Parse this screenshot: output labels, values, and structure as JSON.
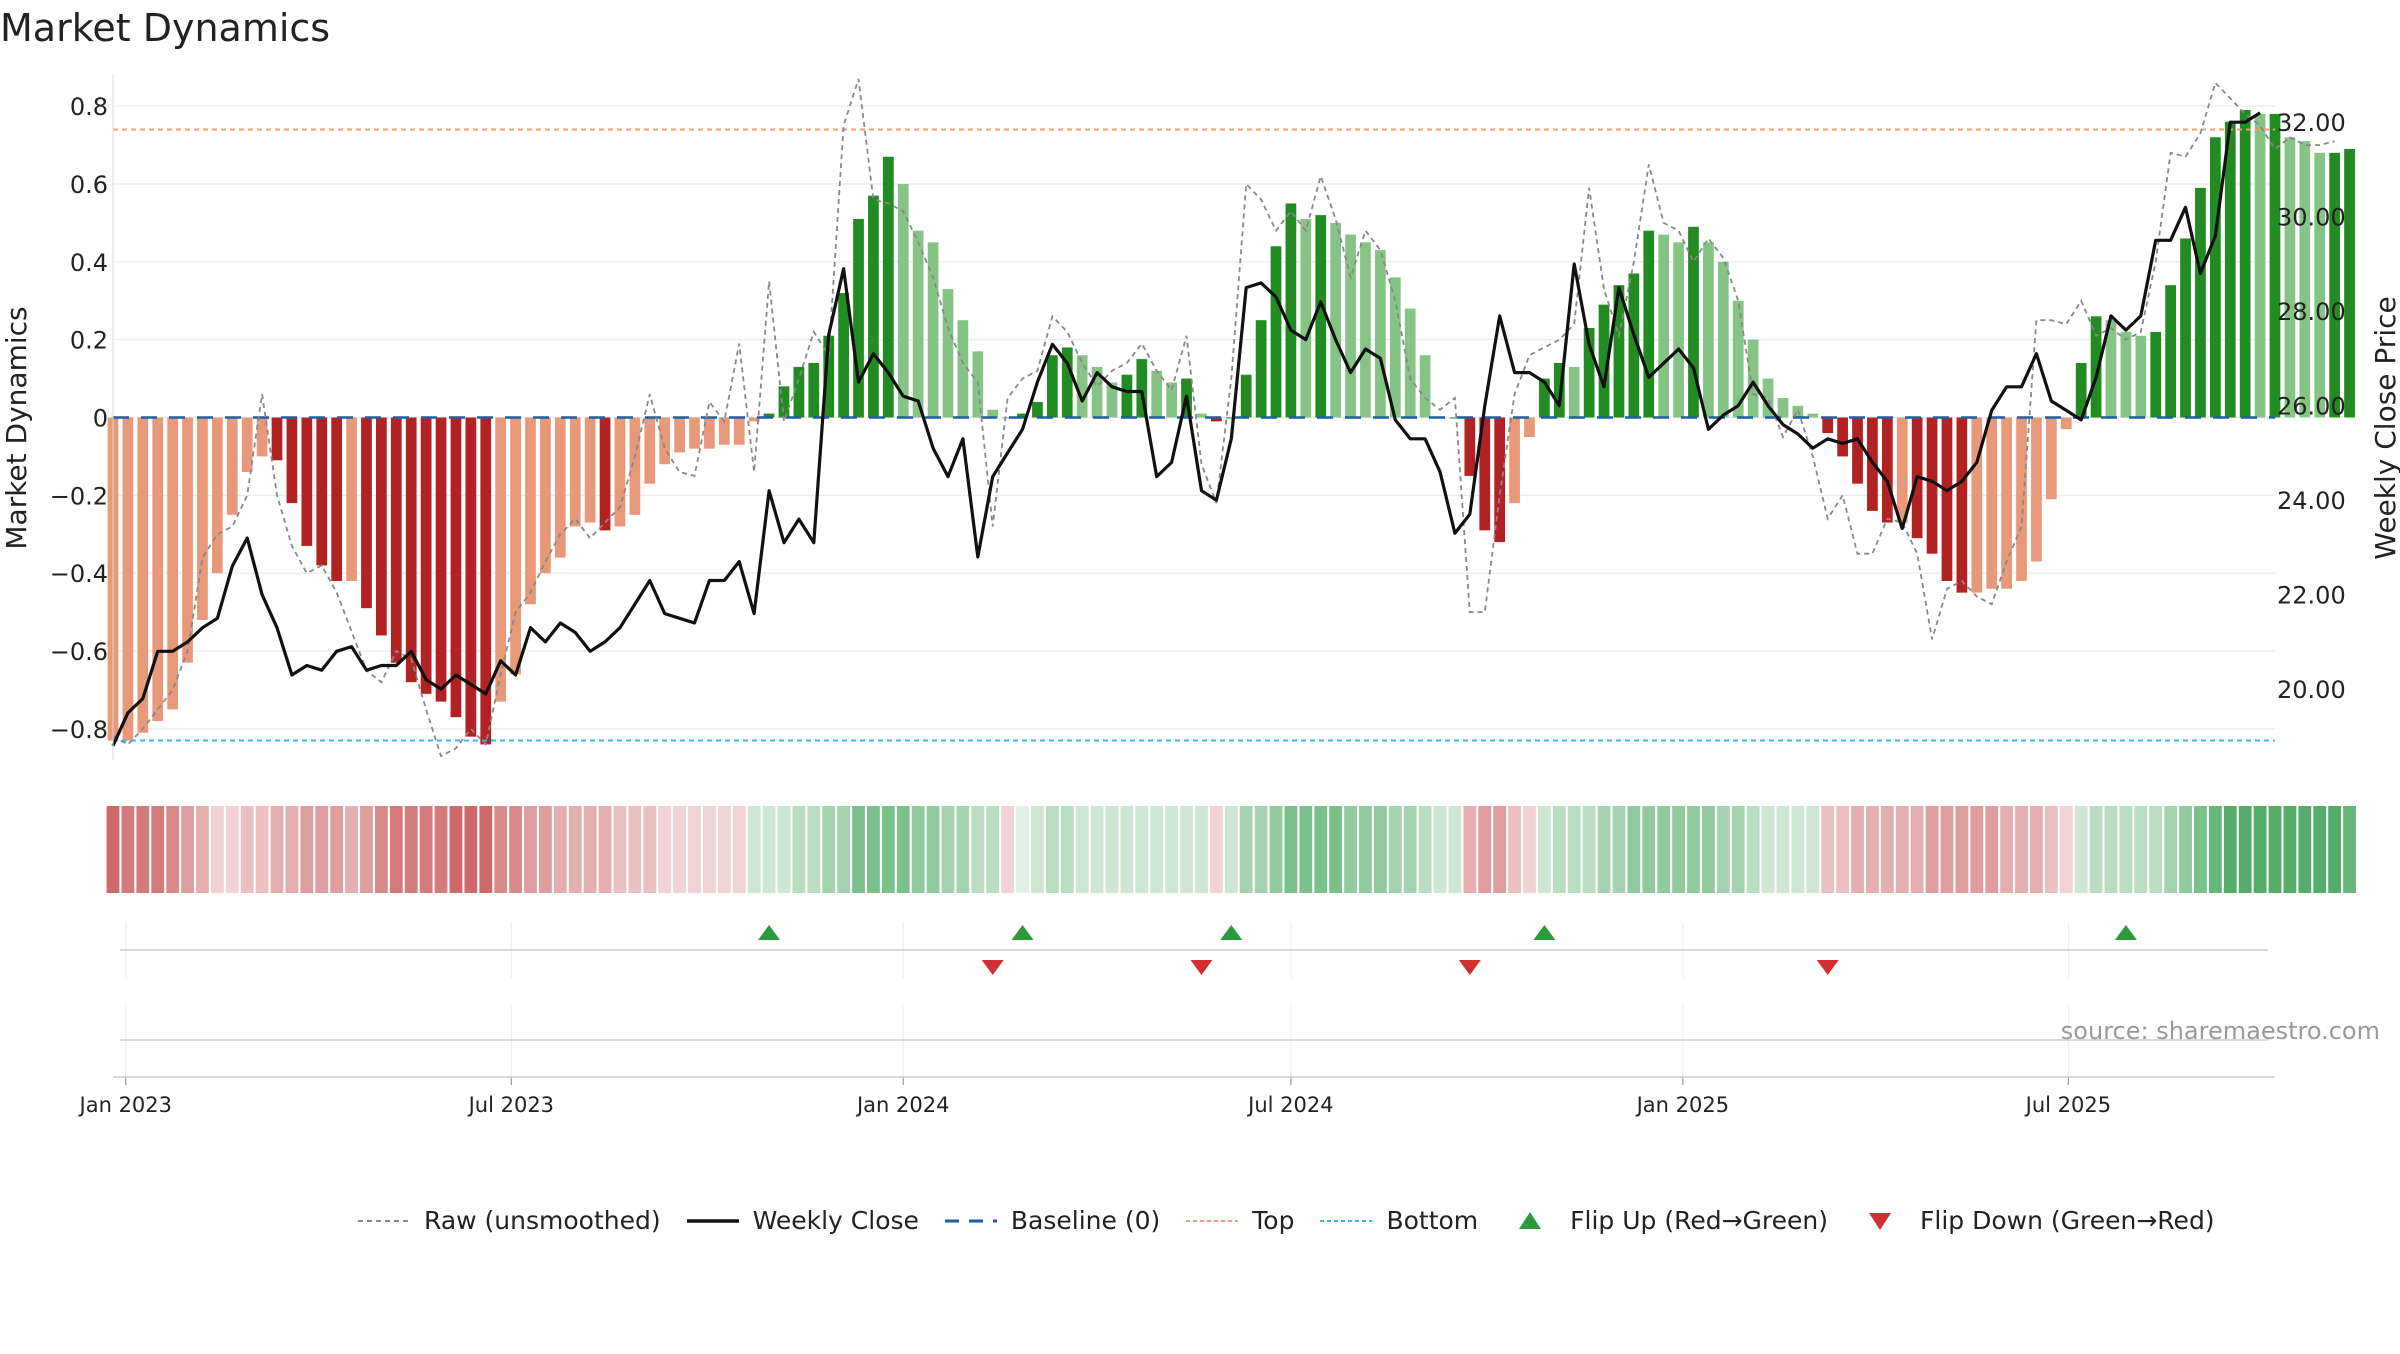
{
  "title": "Market Dynamics",
  "source_note": "source: sharemaestro.com",
  "colors": {
    "strong_red": "#b22222",
    "light_red": "#e8997a",
    "strong_green": "#228b22",
    "light_green": "#86c486",
    "raw_line": "#888888",
    "close_line": "#111111",
    "baseline": "#1f5fa0",
    "top_line": "#f0a070",
    "bottom_line": "#33bbee",
    "flip_up": "#2a9a3a",
    "flip_down": "#d03030"
  },
  "legend": [
    {
      "label": "Raw (unsmoothed)",
      "icon": "dotted-gray-line"
    },
    {
      "label": "Weekly Close",
      "icon": "solid-black-line"
    },
    {
      "label": "Baseline (0)",
      "icon": "dashed-blue-line"
    },
    {
      "label": "Top",
      "icon": "dotted-orange-line"
    },
    {
      "label": "Bottom",
      "icon": "dotted-cyan-line"
    },
    {
      "label": "Flip Up (Red→Green)",
      "icon": "green-triangle-up"
    },
    {
      "label": "Flip Down (Green→Red)",
      "icon": "red-triangle-down"
    }
  ],
  "chart_data": {
    "type": "bar",
    "title": "Market Dynamics",
    "ylabel": "Market Dynamics",
    "y2label": "Weekly Close Price",
    "ylim": [
      -0.88,
      0.88
    ],
    "y2lim": [
      18.5,
      33.0
    ],
    "yticks": [
      "0.8",
      "0.6",
      "0.4",
      "0.2",
      "0",
      "−0.2",
      "−0.4",
      "−0.6",
      "−0.8"
    ],
    "ytick_values": [
      0.8,
      0.6,
      0.4,
      0.2,
      0,
      -0.2,
      -0.4,
      -0.6,
      -0.8
    ],
    "y2ticks": [
      "32.00",
      "30.00",
      "28.00",
      "26.00",
      "24.00",
      "22.00",
      "20.00"
    ],
    "y2tick_values": [
      32,
      30,
      28,
      26,
      24,
      22,
      20
    ],
    "x_start": "2022-12-26",
    "xlim": [
      "2022-12-26",
      "2025-10-06"
    ],
    "xticks": [
      "Jan 2023",
      "Jul 2023",
      "Jan 2024",
      "Jul 2024",
      "Jan 2025",
      "Jul 2025"
    ],
    "xtick_dates": [
      "2023-01-01",
      "2023-07-01",
      "2024-01-01",
      "2024-07-01",
      "2025-01-01",
      "2025-07-01"
    ],
    "top_line": 0.74,
    "bottom_line": -0.83,
    "grid": true,
    "legend_position": "bottom",
    "series": [
      {
        "name": "Market Dynamics",
        "values": [
          -0.83,
          -0.83,
          -0.81,
          -0.78,
          -0.75,
          -0.63,
          -0.52,
          -0.4,
          -0.25,
          -0.14,
          -0.1,
          -0.11,
          -0.22,
          -0.33,
          -0.38,
          -0.42,
          -0.42,
          -0.49,
          -0.56,
          -0.63,
          -0.68,
          -0.71,
          -0.73,
          -0.77,
          -0.82,
          -0.84,
          -0.73,
          -0.66,
          -0.48,
          -0.4,
          -0.36,
          -0.28,
          -0.27,
          -0.29,
          -0.28,
          -0.25,
          -0.17,
          -0.12,
          -0.09,
          -0.08,
          -0.08,
          -0.07,
          -0.07,
          -0.01,
          0.01,
          0.08,
          0.13,
          0.14,
          0.21,
          0.32,
          0.51,
          0.57,
          0.67,
          0.6,
          0.48,
          0.45,
          0.33,
          0.25,
          0.17,
          0.02,
          0.0,
          0.01,
          0.04,
          0.16,
          0.18,
          0.16,
          0.13,
          0.09,
          0.11,
          0.15,
          0.12,
          0.09,
          0.1,
          0.01,
          -0.01,
          0.0,
          0.11,
          0.25,
          0.44,
          0.55,
          0.51,
          0.52,
          0.5,
          0.47,
          0.45,
          0.43,
          0.36,
          0.28,
          0.16,
          0.0,
          0.0,
          -0.15,
          -0.29,
          -0.32,
          -0.22,
          -0.05,
          0.1,
          0.14,
          0.13,
          0.23,
          0.29,
          0.34,
          0.37,
          0.48,
          0.47,
          0.45,
          0.49,
          0.45,
          0.4,
          0.3,
          0.2,
          0.1,
          0.05,
          0.03,
          0.01,
          -0.04,
          -0.1,
          -0.17,
          -0.24,
          -0.27,
          -0.27,
          -0.31,
          -0.35,
          -0.42,
          -0.45,
          -0.45,
          -0.44,
          -0.44,
          -0.42,
          -0.37,
          -0.21,
          -0.03,
          0.14,
          0.26,
          0.25,
          0.22,
          0.21,
          0.22,
          0.34,
          0.46,
          0.59,
          0.72,
          0.76,
          0.79,
          0.78,
          0.78,
          0.72,
          0.71,
          0.68,
          0.68,
          0.69
        ]
      },
      {
        "name": "Raw (unsmoothed)",
        "values": [
          -0.82,
          -0.84,
          -0.8,
          -0.75,
          -0.7,
          -0.6,
          -0.36,
          -0.3,
          -0.28,
          -0.2,
          0.06,
          -0.2,
          -0.33,
          -0.4,
          -0.38,
          -0.45,
          -0.55,
          -0.65,
          -0.68,
          -0.6,
          -0.62,
          -0.75,
          -0.87,
          -0.85,
          -0.8,
          -0.84,
          -0.66,
          -0.5,
          -0.45,
          -0.37,
          -0.3,
          -0.26,
          -0.31,
          -0.27,
          -0.23,
          -0.1,
          0.06,
          -0.08,
          -0.14,
          -0.15,
          0.04,
          -0.01,
          0.19,
          -0.14,
          0.35,
          -0.01,
          0.1,
          0.22,
          0.16,
          0.75,
          0.87,
          0.56,
          0.55,
          0.53,
          0.45,
          0.36,
          0.23,
          0.14,
          0.09,
          -0.28,
          0.05,
          0.1,
          0.12,
          0.26,
          0.22,
          0.14,
          0.08,
          0.12,
          0.14,
          0.19,
          0.12,
          0.07,
          0.21,
          -0.12,
          -0.22,
          0.1,
          0.6,
          0.56,
          0.48,
          0.53,
          0.48,
          0.62,
          0.51,
          0.36,
          0.48,
          0.43,
          0.3,
          0.1,
          0.05,
          0.02,
          0.05,
          -0.5,
          -0.5,
          -0.2,
          0.06,
          0.16,
          0.18,
          0.2,
          0.24,
          0.59,
          0.33,
          0.21,
          0.4,
          0.65,
          0.5,
          0.48,
          0.4,
          0.46,
          0.41,
          0.3,
          0.06,
          0.05,
          -0.05,
          0.02,
          -0.1,
          -0.26,
          -0.2,
          -0.35,
          -0.35,
          -0.26,
          -0.27,
          -0.35,
          -0.57,
          -0.44,
          -0.42,
          -0.46,
          -0.48,
          -0.37,
          -0.28,
          0.25,
          0.25,
          0.24,
          0.3,
          0.21,
          0.23,
          0.2,
          0.22,
          0.4,
          0.68,
          0.67,
          0.73,
          0.86,
          0.82,
          0.78,
          0.75,
          0.69,
          0.72,
          0.7,
          0.7,
          0.71
        ]
      },
      {
        "name": "Weekly Close",
        "values": [
          18.8,
          19.5,
          19.8,
          20.8,
          20.8,
          21.0,
          21.3,
          21.5,
          22.6,
          23.2,
          22.0,
          21.3,
          20.3,
          20.5,
          20.4,
          20.8,
          20.9,
          20.4,
          20.5,
          20.5,
          20.8,
          20.2,
          20.0,
          20.3,
          20.1,
          19.9,
          20.6,
          20.3,
          21.3,
          21.0,
          21.4,
          21.2,
          20.8,
          21.0,
          21.3,
          21.8,
          22.3,
          21.6,
          21.5,
          21.4,
          22.3,
          22.3,
          22.7,
          21.6,
          24.2,
          23.1,
          23.6,
          23.1,
          27.5,
          28.9,
          26.5,
          27.1,
          26.7,
          26.2,
          26.1,
          25.1,
          24.5,
          25.3,
          22.8,
          24.5,
          25.0,
          25.5,
          26.5,
          27.3,
          26.9,
          26.1,
          26.7,
          26.4,
          26.3,
          26.3,
          24.5,
          24.8,
          26.2,
          24.2,
          24.0,
          25.3,
          28.5,
          28.6,
          28.3,
          27.6,
          27.4,
          28.2,
          27.4,
          26.7,
          27.2,
          27.0,
          25.7,
          25.3,
          25.3,
          24.6,
          23.3,
          23.7,
          26.0,
          27.9,
          26.7,
          26.7,
          26.5,
          26.0,
          29.0,
          27.3,
          26.4,
          28.5,
          27.5,
          26.6,
          26.9,
          27.2,
          26.8,
          25.5,
          25.8,
          26.0,
          26.5,
          26.0,
          25.6,
          25.4,
          25.1,
          25.3,
          25.2,
          25.3,
          24.8,
          24.4,
          23.4,
          24.5,
          24.4,
          24.2,
          24.4,
          24.8,
          25.9,
          26.4,
          26.4,
          27.1,
          26.1,
          25.9,
          25.7,
          26.6,
          27.9,
          27.6,
          27.9,
          29.5,
          29.5,
          30.2,
          28.8,
          29.6,
          32.0,
          32.0,
          32.2
        ]
      },
      {
        "name": "Regime Strip",
        "values": [
          -0.7,
          -0.6,
          -0.6,
          -0.6,
          -0.5,
          -0.4,
          -0.3,
          -0.1,
          -0.1,
          -0.2,
          -0.2,
          -0.3,
          -0.3,
          -0.4,
          -0.4,
          -0.4,
          -0.3,
          -0.4,
          -0.5,
          -0.6,
          -0.6,
          -0.6,
          -0.6,
          -0.7,
          -0.7,
          -0.7,
          -0.5,
          -0.5,
          -0.4,
          -0.4,
          -0.3,
          -0.3,
          -0.3,
          -0.3,
          -0.2,
          -0.2,
          -0.2,
          -0.1,
          -0.1,
          -0.1,
          -0.1,
          -0.1,
          -0.1,
          0.1,
          0.1,
          0.1,
          0.2,
          0.2,
          0.3,
          0.3,
          0.5,
          0.5,
          0.5,
          0.5,
          0.4,
          0.4,
          0.3,
          0.3,
          0.2,
          0.2,
          -0.1,
          0.0,
          0.1,
          0.2,
          0.2,
          0.1,
          0.1,
          0.1,
          0.1,
          0.1,
          0.1,
          0.1,
          0.1,
          0.1,
          -0.1,
          0.1,
          0.3,
          0.3,
          0.4,
          0.5,
          0.5,
          0.5,
          0.5,
          0.4,
          0.4,
          0.4,
          0.3,
          0.3,
          0.2,
          0.1,
          0.1,
          -0.3,
          -0.4,
          -0.4,
          -0.2,
          -0.1,
          0.1,
          0.2,
          0.2,
          0.2,
          0.3,
          0.3,
          0.4,
          0.4,
          0.4,
          0.4,
          0.4,
          0.4,
          0.3,
          0.3,
          0.2,
          0.1,
          0.1,
          0.1,
          0.1,
          -0.2,
          -0.2,
          -0.3,
          -0.3,
          -0.3,
          -0.3,
          -0.3,
          -0.4,
          -0.4,
          -0.4,
          -0.4,
          -0.4,
          -0.3,
          -0.3,
          -0.3,
          -0.2,
          -0.1,
          0.1,
          0.2,
          0.2,
          0.2,
          0.2,
          0.2,
          0.3,
          0.4,
          0.5,
          0.6,
          0.7,
          0.7,
          0.7,
          0.7,
          0.7,
          0.7,
          0.7,
          0.7,
          0.6
        ]
      }
    ],
    "flip_up_weeks": [
      44,
      61,
      75,
      96,
      135
    ],
    "flip_down_weeks": [
      59,
      73,
      91,
      115
    ]
  }
}
